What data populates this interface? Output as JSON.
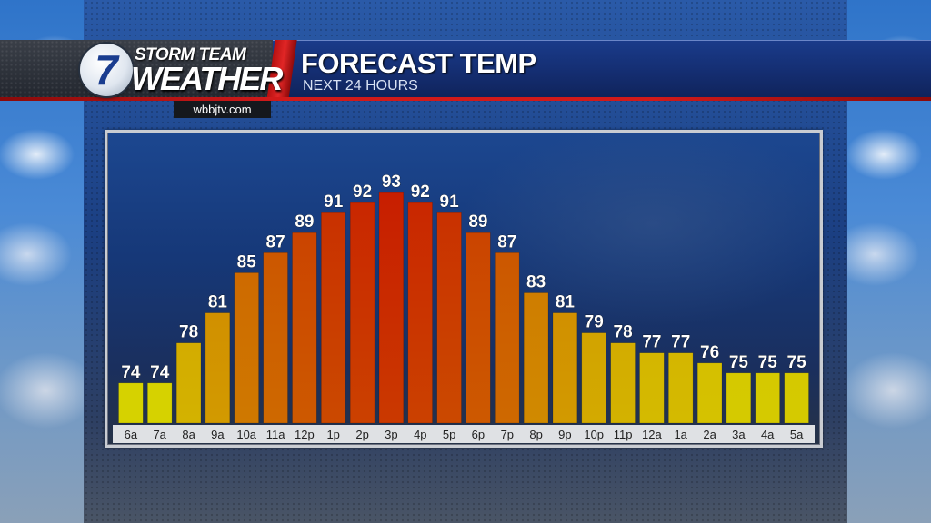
{
  "brand": {
    "logo_number": "7",
    "line1": "STORM TEAM",
    "line2": "WEATHER",
    "website": "wbbjtv.com"
  },
  "header": {
    "title": "FORECAST TEMP",
    "subtitle": "NEXT 24 HOURS"
  },
  "colors": {
    "low": "#d6d200",
    "high": "#c81e00"
  },
  "chart_data": {
    "type": "bar",
    "title": "FORECAST TEMP",
    "subtitle": "NEXT 24 HOURS",
    "categories": [
      "6a",
      "7a",
      "8a",
      "9a",
      "10a",
      "11a",
      "12p",
      "1p",
      "2p",
      "3p",
      "4p",
      "5p",
      "6p",
      "7p",
      "8p",
      "9p",
      "10p",
      "11p",
      "12a",
      "1a",
      "2a",
      "3a",
      "4a",
      "5a"
    ],
    "values": [
      74,
      74,
      78,
      81,
      85,
      87,
      89,
      91,
      92,
      93,
      92,
      91,
      89,
      87,
      83,
      81,
      79,
      78,
      77,
      77,
      76,
      75,
      75,
      75
    ],
    "xlabel": "",
    "ylabel": "",
    "ylim": [
      70,
      95
    ],
    "grid": false,
    "legend": "none",
    "data_labels": true
  }
}
